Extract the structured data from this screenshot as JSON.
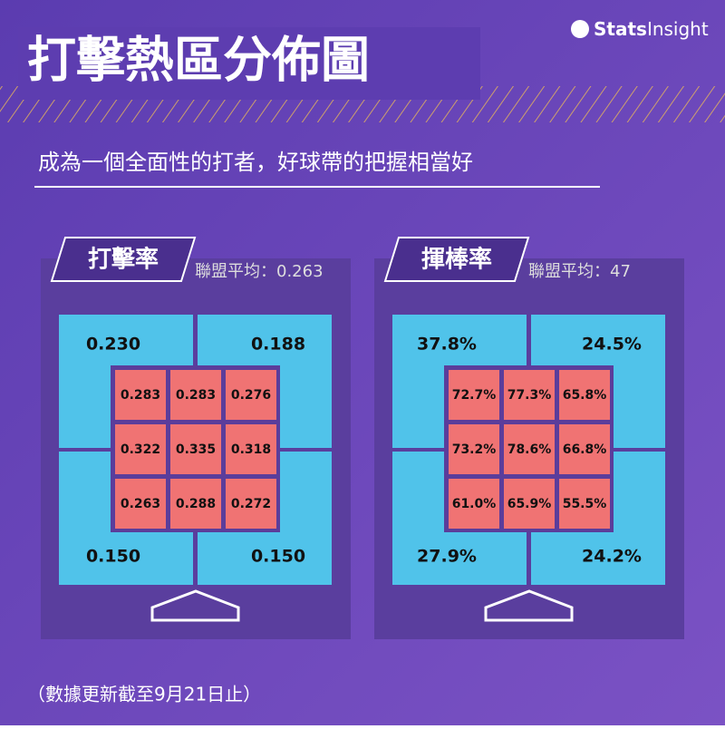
{
  "brand": {
    "bold": "Stats",
    "light": "Insight"
  },
  "title": "打擊熱區分佈圖",
  "subtitle": "成為一個全面性的打者，好球帶的把握相當好",
  "panels": [
    {
      "label": "打擊率",
      "league_avg": "聯盟平均：0.263",
      "outer": [
        "0.230",
        "0.188",
        "0.150",
        "0.150"
      ],
      "inner": [
        [
          "0.283",
          "0.283",
          "0.276"
        ],
        [
          "0.322",
          "0.335",
          "0.318"
        ],
        [
          "0.263",
          "0.288",
          "0.272"
        ]
      ]
    },
    {
      "label": "揮棒率",
      "league_avg": "聯盟平均：47",
      "outer": [
        "37.8%",
        "24.5%",
        "27.9%",
        "24.2%"
      ],
      "inner": [
        [
          "72.7%",
          "77.3%",
          "65.8%"
        ],
        [
          "73.2%",
          "78.6%",
          "66.8%"
        ],
        [
          "61.0%",
          "65.9%",
          "55.5%"
        ]
      ]
    }
  ],
  "footnote": "（數據更新截至9月21日止）"
}
